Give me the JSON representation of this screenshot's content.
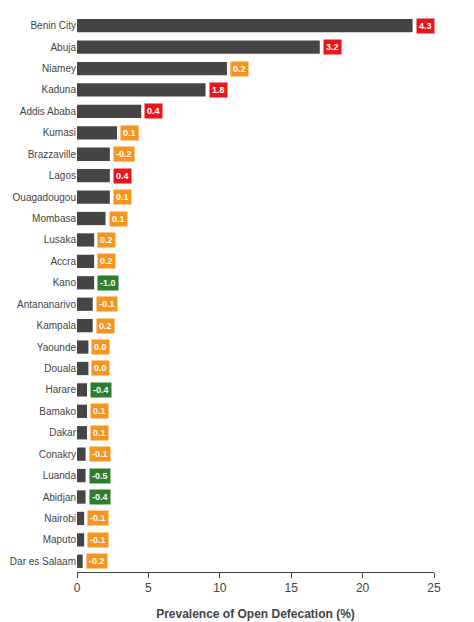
{
  "chart_data": {
    "type": "bar",
    "orientation": "horizontal",
    "categories": [
      "Benin City",
      "Abuja",
      "Niamey",
      "Kaduna",
      "Addis Ababa",
      "Kumasi",
      "Brazzaville",
      "Lagos",
      "Ouagadougou",
      "Mombasa",
      "Lusaka",
      "Accra",
      "Kano",
      "Antananarivo",
      "Kampala",
      "Yaounde",
      "Douala",
      "Harare",
      "Bamako",
      "Dakar",
      "Conakry",
      "Luanda",
      "Abidjan",
      "Nairobi",
      "Maputo",
      "Dar es Salaam"
    ],
    "values": [
      23.5,
      17.0,
      10.5,
      9.0,
      4.5,
      2.8,
      2.3,
      2.3,
      2.3,
      2.0,
      1.2,
      1.2,
      1.2,
      1.1,
      1.1,
      0.8,
      0.8,
      0.7,
      0.7,
      0.7,
      0.6,
      0.6,
      0.6,
      0.5,
      0.5,
      0.4
    ],
    "color": "#454545",
    "labels": [
      "4.3",
      "3.2",
      "0.2",
      "1.8",
      "0.4",
      "0.1",
      "-0.2",
      "0.4",
      "0.1",
      "0.1",
      "0.2",
      "0.2",
      "-1.0",
      "-0.1",
      "0.2",
      "0.0",
      "0.0",
      "-0.4",
      "0.1",
      "0.1",
      "-0.1",
      "-0.5",
      "-0.4",
      "-0.1",
      "-0.1",
      "-0.2"
    ],
    "label_colors": [
      "#e8151b",
      "#e8151b",
      "#f7941d",
      "#e8151b",
      "#e8151b",
      "#f7941d",
      "#f7941d",
      "#e8151b",
      "#f7941d",
      "#f7941d",
      "#f7941d",
      "#f7941d",
      "#2d7d2d",
      "#f7941d",
      "#f7941d",
      "#f7941d",
      "#f7941d",
      "#2d7d2d",
      "#f7941d",
      "#f7941d",
      "#f7941d",
      "#2d7d2d",
      "#2d7d2d",
      "#f7941d",
      "#f7941d",
      "#f7941d"
    ],
    "xlabel": "Prevalence of Open Defecation (%)",
    "xlim": [
      0,
      25
    ],
    "xticks": [
      0,
      5,
      10,
      15,
      20,
      25
    ],
    "grid": false
  }
}
